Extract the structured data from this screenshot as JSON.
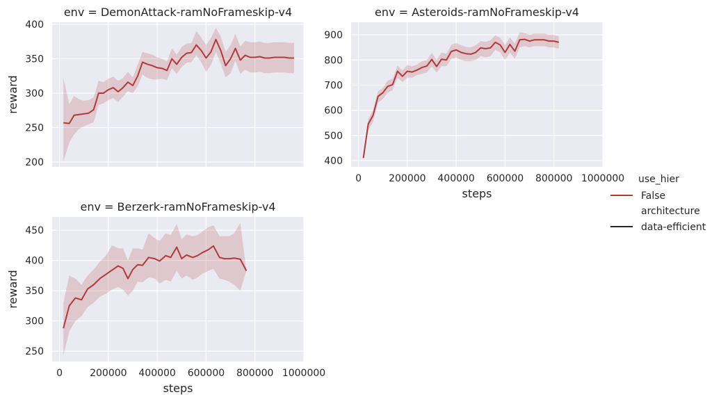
{
  "legend": {
    "title1": "use_hier",
    "entry1": "False",
    "entry1_color": "#b03a3a",
    "title2": "architecture",
    "entry2": "data-efficient",
    "entry2_color": "#262626"
  },
  "colors": {
    "line": "#b03a3a",
    "band": "#b03a3a",
    "panel_bg": "#eaeaf2",
    "grid": "#ffffff"
  },
  "chart_data": [
    {
      "type": "line",
      "title": "env = DemonAttack-ramNoFrameskip-v4",
      "xlabel": "",
      "ylabel": "reward",
      "xlim": [
        -30000,
        1000000
      ],
      "ylim": [
        193,
        403
      ],
      "xticks": [],
      "xtick_labels": [],
      "yticks": [
        200,
        250,
        300,
        350,
        400
      ],
      "ytick_labels": [
        "200",
        "250",
        "300",
        "350",
        "400"
      ],
      "grid": true,
      "series": [
        {
          "name": "False",
          "x": [
            16000,
            40000,
            60000,
            80000,
            100000,
            120000,
            140000,
            160000,
            180000,
            200000,
            220000,
            240000,
            260000,
            280000,
            300000,
            320000,
            340000,
            360000,
            380000,
            400000,
            420000,
            440000,
            460000,
            480000,
            500000,
            520000,
            540000,
            560000,
            580000,
            600000,
            620000,
            640000,
            660000,
            680000,
            700000,
            720000,
            740000,
            760000,
            780000,
            800000,
            820000,
            840000,
            860000,
            880000,
            900000,
            920000,
            940000,
            960000
          ],
          "y": [
            257,
            256,
            268,
            269,
            270,
            271,
            276,
            300,
            300,
            305,
            308,
            302,
            308,
            316,
            311,
            325,
            345,
            342,
            340,
            337,
            336,
            333,
            350,
            342,
            352,
            358,
            359,
            370,
            362,
            351,
            360,
            378,
            362,
            340,
            350,
            365,
            348,
            355,
            352,
            352,
            353,
            351,
            351,
            352,
            352,
            352,
            351,
            351
          ],
          "lower": [
            201,
            228,
            240,
            248,
            252,
            255,
            258,
            283,
            285,
            290,
            293,
            287,
            295,
            303,
            300,
            310,
            327,
            322,
            320,
            320,
            321,
            319,
            336,
            328,
            338,
            344,
            345,
            355,
            345,
            331,
            341,
            360,
            343,
            323,
            329,
            347,
            328,
            334,
            330,
            330,
            331,
            329,
            329,
            330,
            330,
            330,
            329,
            329
          ],
          "upper": [
            322,
            284,
            296,
            291,
            289,
            290,
            294,
            318,
            316,
            321,
            324,
            318,
            322,
            331,
            323,
            341,
            360,
            358,
            356,
            352,
            350,
            346,
            365,
            356,
            367,
            372,
            373,
            390,
            381,
            370,
            380,
            395,
            382,
            360,
            370,
            386,
            368,
            376,
            374,
            374,
            375,
            373,
            373,
            374,
            374,
            374,
            373,
            373
          ]
        }
      ]
    },
    {
      "type": "line",
      "title": "env = Asteroids-ramNoFrameskip-v4",
      "xlabel": "steps",
      "ylabel": "",
      "xlim": [
        -30000,
        1000000
      ],
      "ylim": [
        375,
        950
      ],
      "xticks": [
        0,
        200000,
        400000,
        600000,
        800000,
        1000000
      ],
      "xtick_labels": [
        "0",
        "200000",
        "400000",
        "600000",
        "800000",
        "1000000"
      ],
      "yticks": [
        400,
        500,
        600,
        700,
        800,
        900
      ],
      "ytick_labels": [
        "400",
        "500",
        "600",
        "700",
        "800",
        "900"
      ],
      "grid": true,
      "series": [
        {
          "name": "False",
          "x": [
            20000,
            40000,
            60000,
            80000,
            100000,
            120000,
            140000,
            160000,
            180000,
            200000,
            220000,
            240000,
            260000,
            280000,
            300000,
            320000,
            340000,
            360000,
            380000,
            400000,
            420000,
            440000,
            460000,
            480000,
            500000,
            520000,
            540000,
            560000,
            580000,
            600000,
            620000,
            640000,
            660000,
            680000,
            700000,
            720000,
            740000,
            760000,
            780000,
            800000,
            820000
          ],
          "y": [
            410,
            545,
            580,
            655,
            670,
            695,
            702,
            755,
            735,
            755,
            752,
            760,
            770,
            776,
            802,
            774,
            803,
            800,
            834,
            840,
            830,
            825,
            823,
            830,
            848,
            845,
            848,
            870,
            860,
            830,
            862,
            835,
            880,
            882,
            875,
            880,
            880,
            880,
            875,
            875,
            870
          ],
          "lower": [
            403,
            520,
            555,
            630,
            645,
            670,
            680,
            730,
            712,
            730,
            730,
            740,
            745,
            750,
            775,
            750,
            775,
            775,
            805,
            810,
            800,
            795,
            795,
            800,
            815,
            810,
            815,
            840,
            830,
            800,
            830,
            805,
            850,
            855,
            850,
            855,
            855,
            855,
            850,
            850,
            845
          ],
          "upper": [
            418,
            565,
            602,
            675,
            690,
            718,
            725,
            778,
            758,
            780,
            775,
            782,
            795,
            800,
            828,
            800,
            830,
            825,
            860,
            868,
            858,
            852,
            850,
            858,
            875,
            872,
            878,
            898,
            888,
            860,
            890,
            865,
            910,
            908,
            900,
            905,
            905,
            905,
            900,
            900,
            895
          ]
        }
      ]
    },
    {
      "type": "line",
      "title": "env = Berzerk-ramNoFrameskip-v4",
      "xlabel": "steps",
      "ylabel": "reward",
      "xlim": [
        -30000,
        1000000
      ],
      "ylim": [
        233,
        472
      ],
      "xticks": [
        0,
        200000,
        400000,
        600000,
        800000,
        1000000
      ],
      "xtick_labels": [
        "0",
        "200000",
        "400000",
        "600000",
        "800000",
        "1000000"
      ],
      "yticks": [
        250,
        300,
        350,
        400,
        450
      ],
      "ytick_labels": [
        "250",
        "300",
        "350",
        "400",
        "450"
      ],
      "grid": true,
      "series": [
        {
          "name": "False",
          "x": [
            16000,
            40000,
            65000,
            90000,
            115000,
            140000,
            165000,
            190000,
            215000,
            240000,
            260000,
            280000,
            300000,
            320000,
            340000,
            365000,
            390000,
            410000,
            435000,
            455000,
            480000,
            500000,
            520000,
            545000,
            565000,
            585000,
            610000,
            630000,
            655000,
            675000,
            695000,
            715000,
            740000,
            765000
          ],
          "y": [
            288,
            325,
            338,
            335,
            353,
            360,
            370,
            377,
            384,
            391,
            387,
            370,
            385,
            393,
            392,
            405,
            403,
            399,
            408,
            405,
            422,
            403,
            409,
            405,
            408,
            413,
            418,
            424,
            405,
            403,
            403,
            404,
            402,
            383
          ],
          "lower": [
            243,
            283,
            300,
            308,
            323,
            330,
            340,
            345,
            352,
            356,
            352,
            342,
            350,
            365,
            364,
            372,
            370,
            362,
            368,
            365,
            383,
            370,
            375,
            368,
            372,
            378,
            383,
            386,
            370,
            368,
            365,
            360,
            350,
            383
          ],
          "upper": [
            330,
            375,
            370,
            360,
            375,
            385,
            398,
            408,
            425,
            420,
            420,
            400,
            420,
            420,
            418,
            445,
            437,
            432,
            445,
            442,
            460,
            435,
            443,
            440,
            442,
            448,
            455,
            458,
            440,
            440,
            440,
            445,
            462,
            383
          ]
        }
      ]
    }
  ]
}
